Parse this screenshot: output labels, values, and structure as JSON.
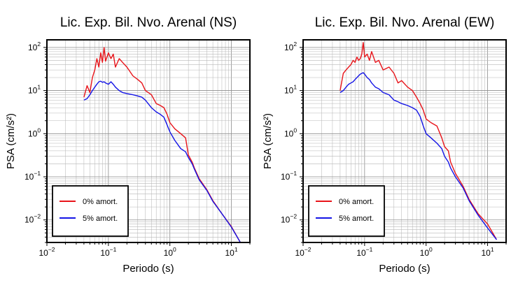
{
  "chart_data": [
    {
      "type": "line",
      "title": "Lic. Exp. Bil. Nvo. Arenal (NS)",
      "xlabel": "Periodo (s)",
      "ylabel": "PSA (cm/s²)",
      "xscale": "log",
      "yscale": "log",
      "xlim": [
        0.01,
        20
      ],
      "ylim": [
        0.003,
        150
      ],
      "x_tick_labels": [
        {
          "base": "10",
          "exp": "−2"
        },
        {
          "base": "10",
          "exp": "−1"
        },
        {
          "base": "10",
          "exp": "0"
        },
        {
          "base": "10",
          "exp": "1"
        }
      ],
      "y_tick_labels": [
        {
          "base": "10",
          "exp": "−2"
        },
        {
          "base": "10",
          "exp": "−1"
        },
        {
          "base": "10",
          "exp": "0"
        },
        {
          "base": "10",
          "exp": "1"
        },
        {
          "base": "10",
          "exp": "2"
        }
      ],
      "grid": true,
      "legend_position": "bottom-left",
      "series": [
        {
          "name": "0% amort.",
          "color": "#e8141a",
          "x": [
            0.04,
            0.045,
            0.05,
            0.055,
            0.06,
            0.065,
            0.07,
            0.075,
            0.08,
            0.085,
            0.09,
            0.1,
            0.11,
            0.12,
            0.13,
            0.15,
            0.17,
            0.2,
            0.25,
            0.3,
            0.35,
            0.4,
            0.5,
            0.6,
            0.7,
            0.8,
            0.9,
            1.0,
            1.2,
            1.5,
            1.8,
            2.0,
            2.3,
            2.5,
            3.0,
            4.0,
            5.0,
            7.0,
            10.0,
            14.0
          ],
          "y": [
            7,
            13,
            9,
            20,
            30,
            55,
            35,
            75,
            45,
            100,
            48,
            75,
            55,
            70,
            35,
            55,
            45,
            35,
            22,
            18,
            15,
            10,
            8,
            5,
            4.5,
            4,
            2.8,
            1.8,
            1.3,
            1.0,
            0.8,
            0.32,
            0.22,
            0.16,
            0.09,
            0.05,
            0.028,
            0.014,
            0.007,
            0.003
          ]
        },
        {
          "name": "5% amort.",
          "color": "#1414e6",
          "x": [
            0.04,
            0.045,
            0.05,
            0.055,
            0.06,
            0.065,
            0.07,
            0.075,
            0.08,
            0.085,
            0.09,
            0.1,
            0.11,
            0.12,
            0.13,
            0.15,
            0.17,
            0.2,
            0.25,
            0.3,
            0.35,
            0.4,
            0.5,
            0.6,
            0.7,
            0.8,
            0.9,
            1.0,
            1.2,
            1.5,
            1.8,
            2.0,
            2.3,
            2.5,
            3.0,
            4.0,
            5.0,
            7.0,
            10.0,
            14.0
          ],
          "y": [
            6,
            6.5,
            8,
            10,
            12,
            14,
            16,
            16.5,
            15.5,
            16,
            15,
            14,
            16,
            14,
            12,
            10,
            9,
            8.5,
            8,
            7.5,
            7,
            6,
            4,
            3.2,
            2.8,
            2.4,
            1.6,
            1.1,
            0.7,
            0.45,
            0.38,
            0.28,
            0.2,
            0.15,
            0.085,
            0.048,
            0.027,
            0.014,
            0.0068,
            0.003
          ]
        }
      ]
    },
    {
      "type": "line",
      "title": "Lic. Exp. Bil. Nvo. Arenal (EW)",
      "xlabel": "Periodo (s)",
      "ylabel": "PSA (cm/s²)",
      "xscale": "log",
      "yscale": "log",
      "xlim": [
        0.01,
        20
      ],
      "ylim": [
        0.003,
        150
      ],
      "x_tick_labels": [
        {
          "base": "10",
          "exp": "−2"
        },
        {
          "base": "10",
          "exp": "−1"
        },
        {
          "base": "10",
          "exp": "0"
        },
        {
          "base": "10",
          "exp": "1"
        }
      ],
      "y_tick_labels": [
        {
          "base": "10",
          "exp": "−2"
        },
        {
          "base": "10",
          "exp": "−1"
        },
        {
          "base": "10",
          "exp": "0"
        },
        {
          "base": "10",
          "exp": "1"
        },
        {
          "base": "10",
          "exp": "2"
        }
      ],
      "grid": true,
      "legend_position": "bottom-left",
      "series": [
        {
          "name": "0% amort.",
          "color": "#e8141a",
          "x": [
            0.04,
            0.045,
            0.05,
            0.055,
            0.06,
            0.065,
            0.07,
            0.075,
            0.08,
            0.085,
            0.09,
            0.095,
            0.1,
            0.11,
            0.12,
            0.13,
            0.15,
            0.17,
            0.2,
            0.25,
            0.3,
            0.35,
            0.4,
            0.5,
            0.6,
            0.7,
            0.8,
            0.9,
            1.0,
            1.2,
            1.5,
            1.8,
            2.0,
            2.3,
            2.5,
            3.0,
            4.0,
            5.0,
            7.0,
            10.0,
            14.0
          ],
          "y": [
            10,
            25,
            30,
            35,
            40,
            50,
            45,
            60,
            50,
            55,
            70,
            130,
            60,
            70,
            50,
            80,
            45,
            50,
            30,
            35,
            25,
            15,
            17,
            12,
            10,
            7,
            5,
            3.5,
            2.2,
            1.8,
            1.5,
            0.8,
            0.5,
            0.4,
            0.22,
            0.12,
            0.06,
            0.03,
            0.014,
            0.008,
            0.0035
          ]
        },
        {
          "name": "5% amort.",
          "color": "#1414e6",
          "x": [
            0.04,
            0.045,
            0.05,
            0.055,
            0.06,
            0.065,
            0.07,
            0.075,
            0.08,
            0.085,
            0.09,
            0.095,
            0.1,
            0.11,
            0.12,
            0.13,
            0.15,
            0.17,
            0.2,
            0.25,
            0.3,
            0.35,
            0.4,
            0.5,
            0.6,
            0.7,
            0.8,
            0.9,
            1.0,
            1.2,
            1.5,
            1.8,
            2.0,
            2.3,
            2.5,
            3.0,
            4.0,
            5.0,
            7.0,
            10.0,
            14.0
          ],
          "y": [
            9,
            10,
            12,
            14,
            15,
            16,
            18,
            20,
            22,
            24,
            25,
            26,
            24,
            20,
            18,
            15,
            12,
            11,
            9,
            8,
            6,
            5.5,
            5,
            4.5,
            4,
            3.5,
            2.5,
            1.5,
            1.0,
            0.8,
            0.6,
            0.45,
            0.3,
            0.22,
            0.16,
            0.1,
            0.055,
            0.028,
            0.013,
            0.0065,
            0.0035
          ]
        }
      ]
    }
  ]
}
